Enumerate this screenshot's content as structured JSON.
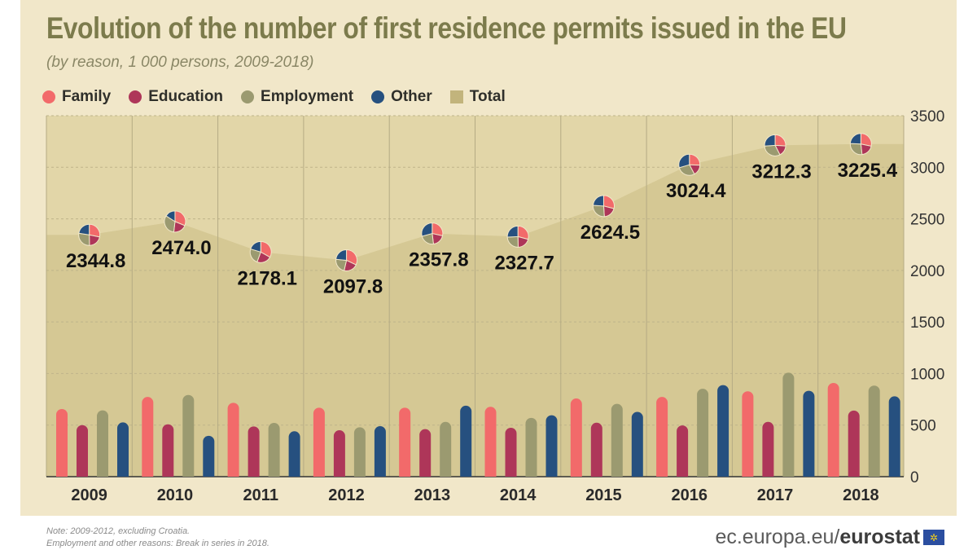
{
  "title": "Evolution of the number of first residence permits issued in the EU",
  "subtitle": "(by reason, 1 000 persons, 2009-2018)",
  "legend": [
    {
      "label": "Family",
      "color": "#f26a6a",
      "shape": "circle"
    },
    {
      "label": "Education",
      "color": "#ae3659",
      "shape": "circle"
    },
    {
      "label": "Employment",
      "color": "#9b9a70",
      "shape": "circle"
    },
    {
      "label": "Other",
      "color": "#26507f",
      "shape": "circle"
    },
    {
      "label": "Total",
      "color": "#c2b47c",
      "shape": "square"
    }
  ],
  "chart_data": {
    "type": "bar",
    "categories": [
      "2009",
      "2010",
      "2011",
      "2012",
      "2013",
      "2014",
      "2015",
      "2016",
      "2017",
      "2018"
    ],
    "series": [
      {
        "name": "Family",
        "type": "bar",
        "values": [
          656,
          773,
          716,
          669,
          669,
          677,
          758,
          773,
          828,
          909
        ]
      },
      {
        "name": "Education",
        "type": "bar",
        "values": [
          500,
          508,
          487,
          450,
          461,
          474,
          523,
          497,
          531,
          641
        ]
      },
      {
        "name": "Employment",
        "type": "bar",
        "values": [
          643,
          792,
          521,
          479,
          531,
          570,
          706,
          852,
          1008,
          883
        ]
      },
      {
        "name": "Other",
        "type": "bar",
        "values": [
          526,
          396,
          440,
          490,
          688,
          596,
          628,
          888,
          833,
          779
        ]
      },
      {
        "name": "Total",
        "type": "area",
        "values": [
          2344.8,
          2474.0,
          2178.1,
          2097.8,
          2357.8,
          2327.7,
          2624.5,
          3024.4,
          3212.3,
          3225.4
        ]
      }
    ],
    "data_labels": [
      "2344.8",
      "2474.0",
      "2178.1",
      "2097.8",
      "2357.8",
      "2327.7",
      "2624.5",
      "3024.4",
      "3212.3",
      "3225.4"
    ],
    "ylim": [
      0,
      3500
    ],
    "yticks": [
      0,
      500,
      1000,
      1500,
      2000,
      2500,
      3000,
      3500
    ],
    "y_axis_side": "right",
    "grid": true,
    "legend_placement": "top-left"
  },
  "footer": {
    "note_line1": "Note: 2009-2012, excluding Croatia.",
    "note_line2": "Employment and other reasons: Break in series in 2018.",
    "brand_prefix": "ec.europa.eu/",
    "brand_name": "eurostat"
  }
}
